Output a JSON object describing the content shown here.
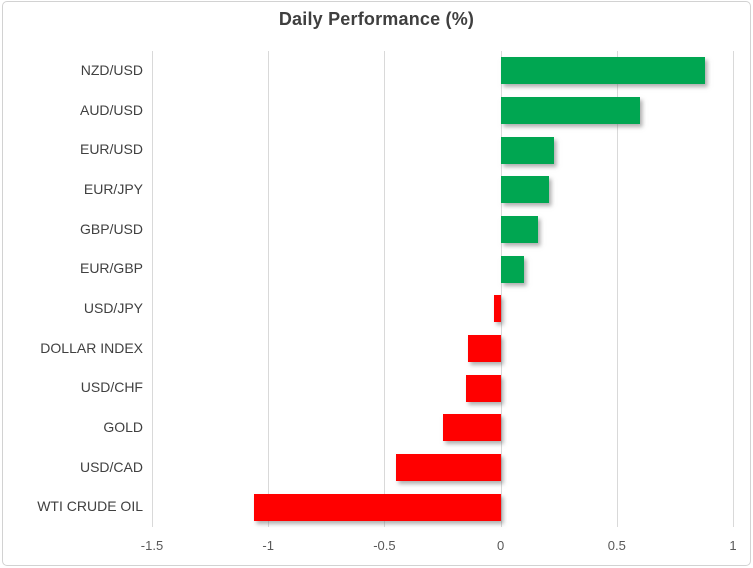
{
  "chart_data": {
    "type": "bar",
    "orientation": "horizontal",
    "title": "Daily Performance (%)",
    "categories": [
      "NZD/USD",
      "AUD/USD",
      "EUR/USD",
      "EUR/JPY",
      "GBP/USD",
      "EUR/GBP",
      "USD/JPY",
      "DOLLAR INDEX",
      "USD/CHF",
      "GOLD",
      "USD/CAD",
      "WTI CRUDE OIL"
    ],
    "values": [
      0.88,
      0.6,
      0.23,
      0.21,
      0.16,
      0.1,
      -0.03,
      -0.14,
      -0.15,
      -0.25,
      -0.45,
      -1.06
    ],
    "xlabel": "",
    "ylabel": "",
    "xlim": [
      -1.5,
      1.0
    ],
    "x_ticks": [
      -1.5,
      -1,
      -0.5,
      0,
      0.5,
      1
    ],
    "x_tick_labels": [
      "-1.5",
      "-1",
      "-0.5",
      "0",
      "0.5",
      "1"
    ],
    "grid": "vertical-gridlines-on",
    "legend": "none",
    "colors": {
      "positive_bar": "#00a651",
      "negative_bar": "#ff0000",
      "gridline": "#d9d9d9",
      "title_text": "#3f3f3f",
      "category_text": "#404040",
      "tick_text": "#595959",
      "frame_border": "#d2d2d2",
      "background": "#ffffff"
    }
  }
}
